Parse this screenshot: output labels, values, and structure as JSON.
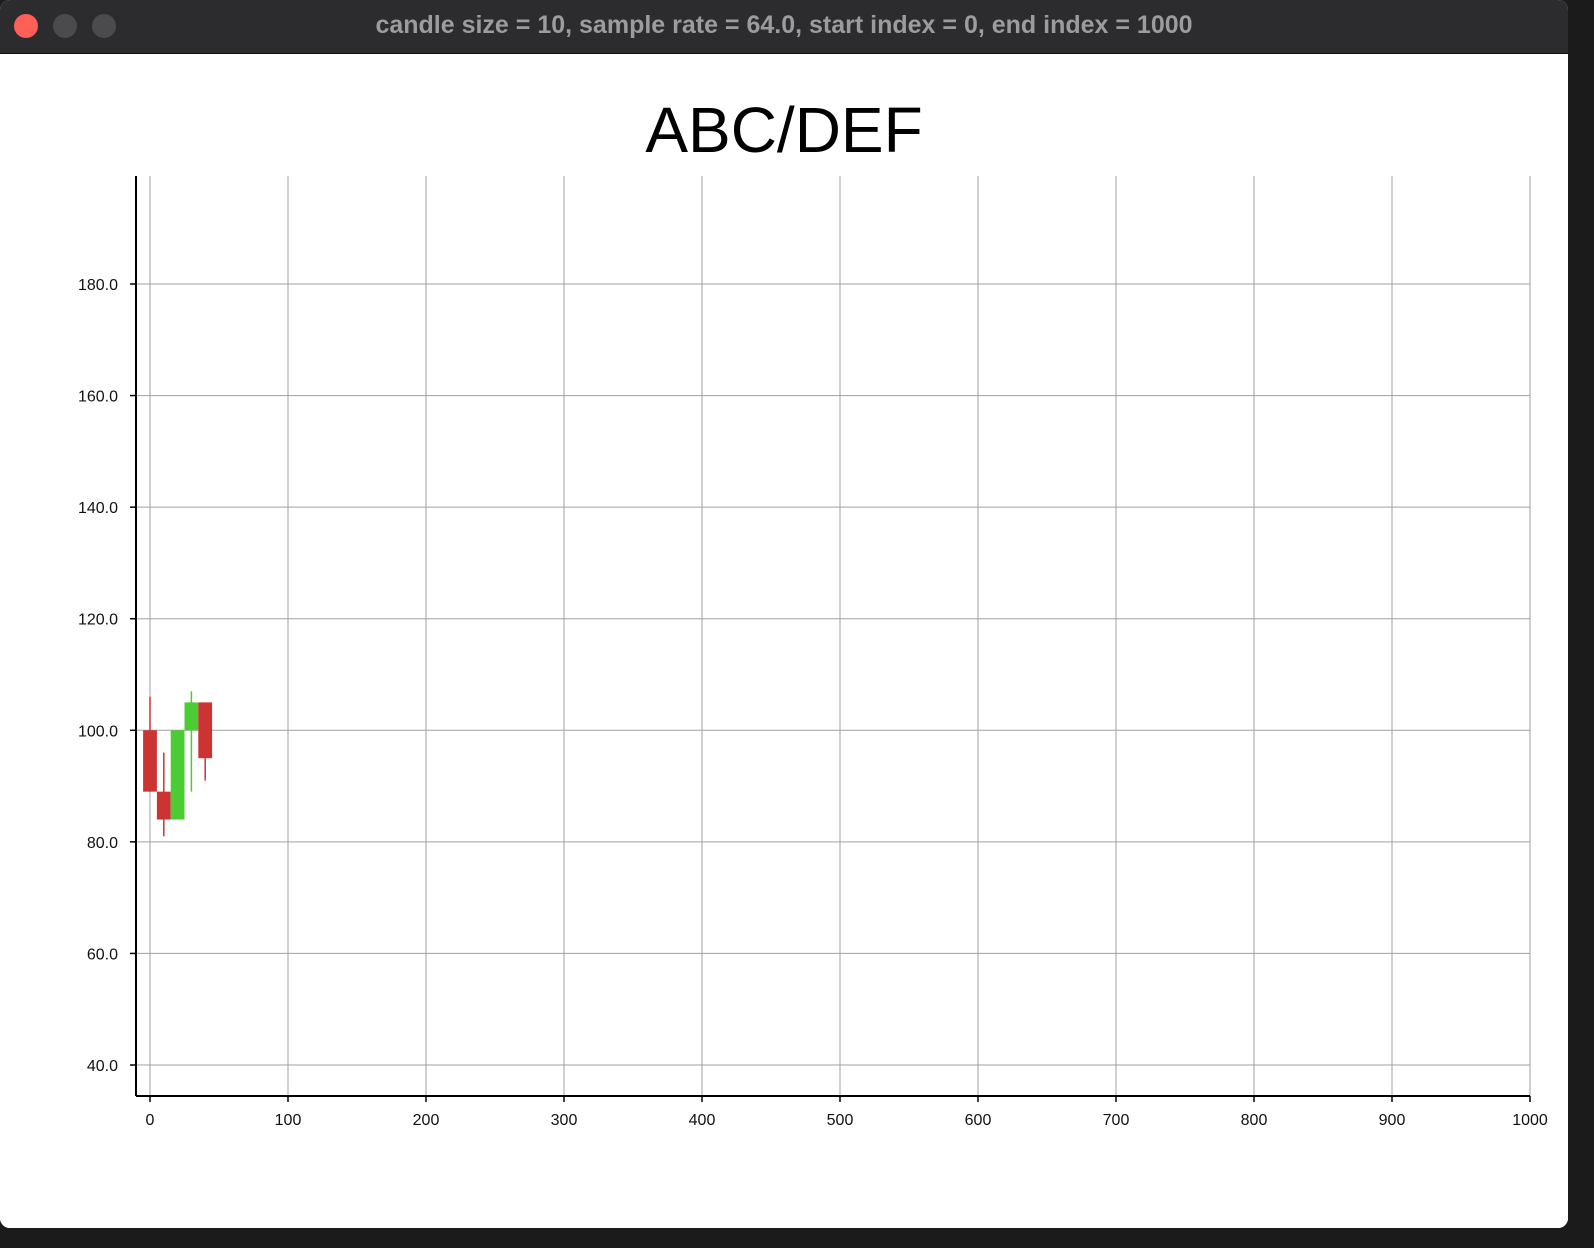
{
  "window": {
    "title": "candle size = 10, sample rate = 64.0, start index = 0, end index = 1000",
    "buttons": [
      "close",
      "minimize",
      "maximize"
    ]
  },
  "colors": {
    "bullish": "#4ccc33",
    "bearish": "#cc3333",
    "grid": "#a0a0a0",
    "axis": "#000000"
  },
  "chart_data": {
    "type": "candlestick",
    "title": "ABC/DEF",
    "xlabel": "",
    "ylabel": "",
    "xlim": [
      0,
      1000
    ],
    "ylim": [
      34,
      200
    ],
    "grid": true,
    "x_ticks": [
      0,
      100,
      200,
      300,
      400,
      500,
      600,
      700,
      800,
      900,
      1000
    ],
    "y_ticks": [
      40.0,
      60.0,
      80.0,
      100.0,
      120.0,
      140.0,
      160.0,
      180.0
    ],
    "x_tick_labels": [
      "0",
      "100",
      "200",
      "300",
      "400",
      "500",
      "600",
      "700",
      "800",
      "900",
      "1000"
    ],
    "y_tick_labels": [
      "40.0",
      "60.0",
      "80.0",
      "100.0",
      "120.0",
      "140.0",
      "160.0",
      "180.0"
    ],
    "candle_width": 10,
    "candles": [
      {
        "x": 0,
        "open": 100,
        "high": 106,
        "low": 89,
        "close": 89
      },
      {
        "x": 10,
        "open": 89,
        "high": 96,
        "low": 81,
        "close": 84
      },
      {
        "x": 20,
        "open": 84,
        "high": 100,
        "low": 84,
        "close": 100
      },
      {
        "x": 30,
        "open": 100,
        "high": 107,
        "low": 89,
        "close": 105
      },
      {
        "x": 40,
        "open": 105,
        "high": 105,
        "low": 91,
        "close": 95
      }
    ]
  }
}
